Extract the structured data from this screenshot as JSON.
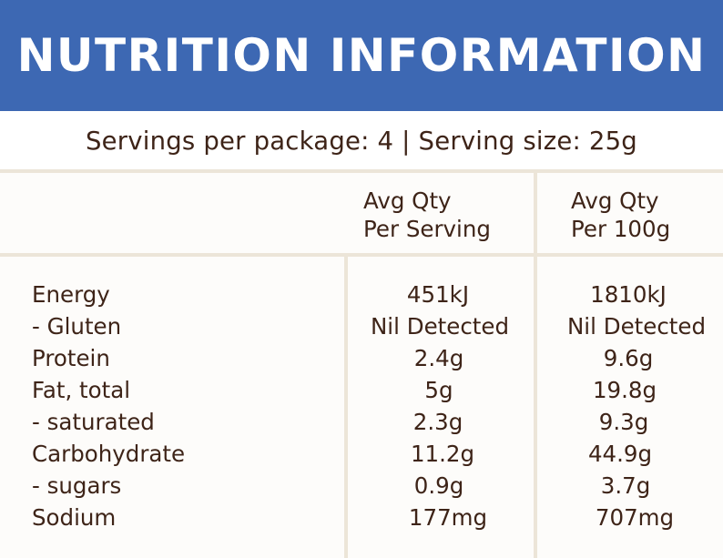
{
  "header": {
    "title": "NUTRITION INFORMATION"
  },
  "serving_info": "Servings per package: 4 | Serving size: 25g",
  "columns": [
    {
      "line1": "Avg Qty",
      "line2": "Per Serving"
    },
    {
      "line1": "Avg Qty",
      "line2": "Per 100g"
    }
  ],
  "rows": [
    {
      "label": "Energy",
      "per_serving": "451kJ",
      "per_100g": "1810kJ"
    },
    {
      "label": "- Gluten",
      "per_serving": "Nil Detected",
      "per_100g": "Nil Detected"
    },
    {
      "label": "Protein",
      "per_serving": "2.4g",
      "per_100g": "9.6g"
    },
    {
      "label": "Fat, total",
      "per_serving": "5g",
      "per_100g": "19.8g"
    },
    {
      "label": "- saturated",
      "per_serving": "2.3g",
      "per_100g": "9.3g"
    },
    {
      "label": "Carbohydrate",
      "per_serving": "11.2g",
      "per_100g": "44.9g"
    },
    {
      "label": "- sugars",
      "per_serving": "0.9g",
      "per_100g": "3.7g"
    },
    {
      "label": "Sodium",
      "per_serving": "177mg",
      "per_100g": "707mg"
    }
  ],
  "colors": {
    "header_bg": "#3d68b3",
    "text": "#3e2418",
    "divider": "#ece5d8"
  }
}
